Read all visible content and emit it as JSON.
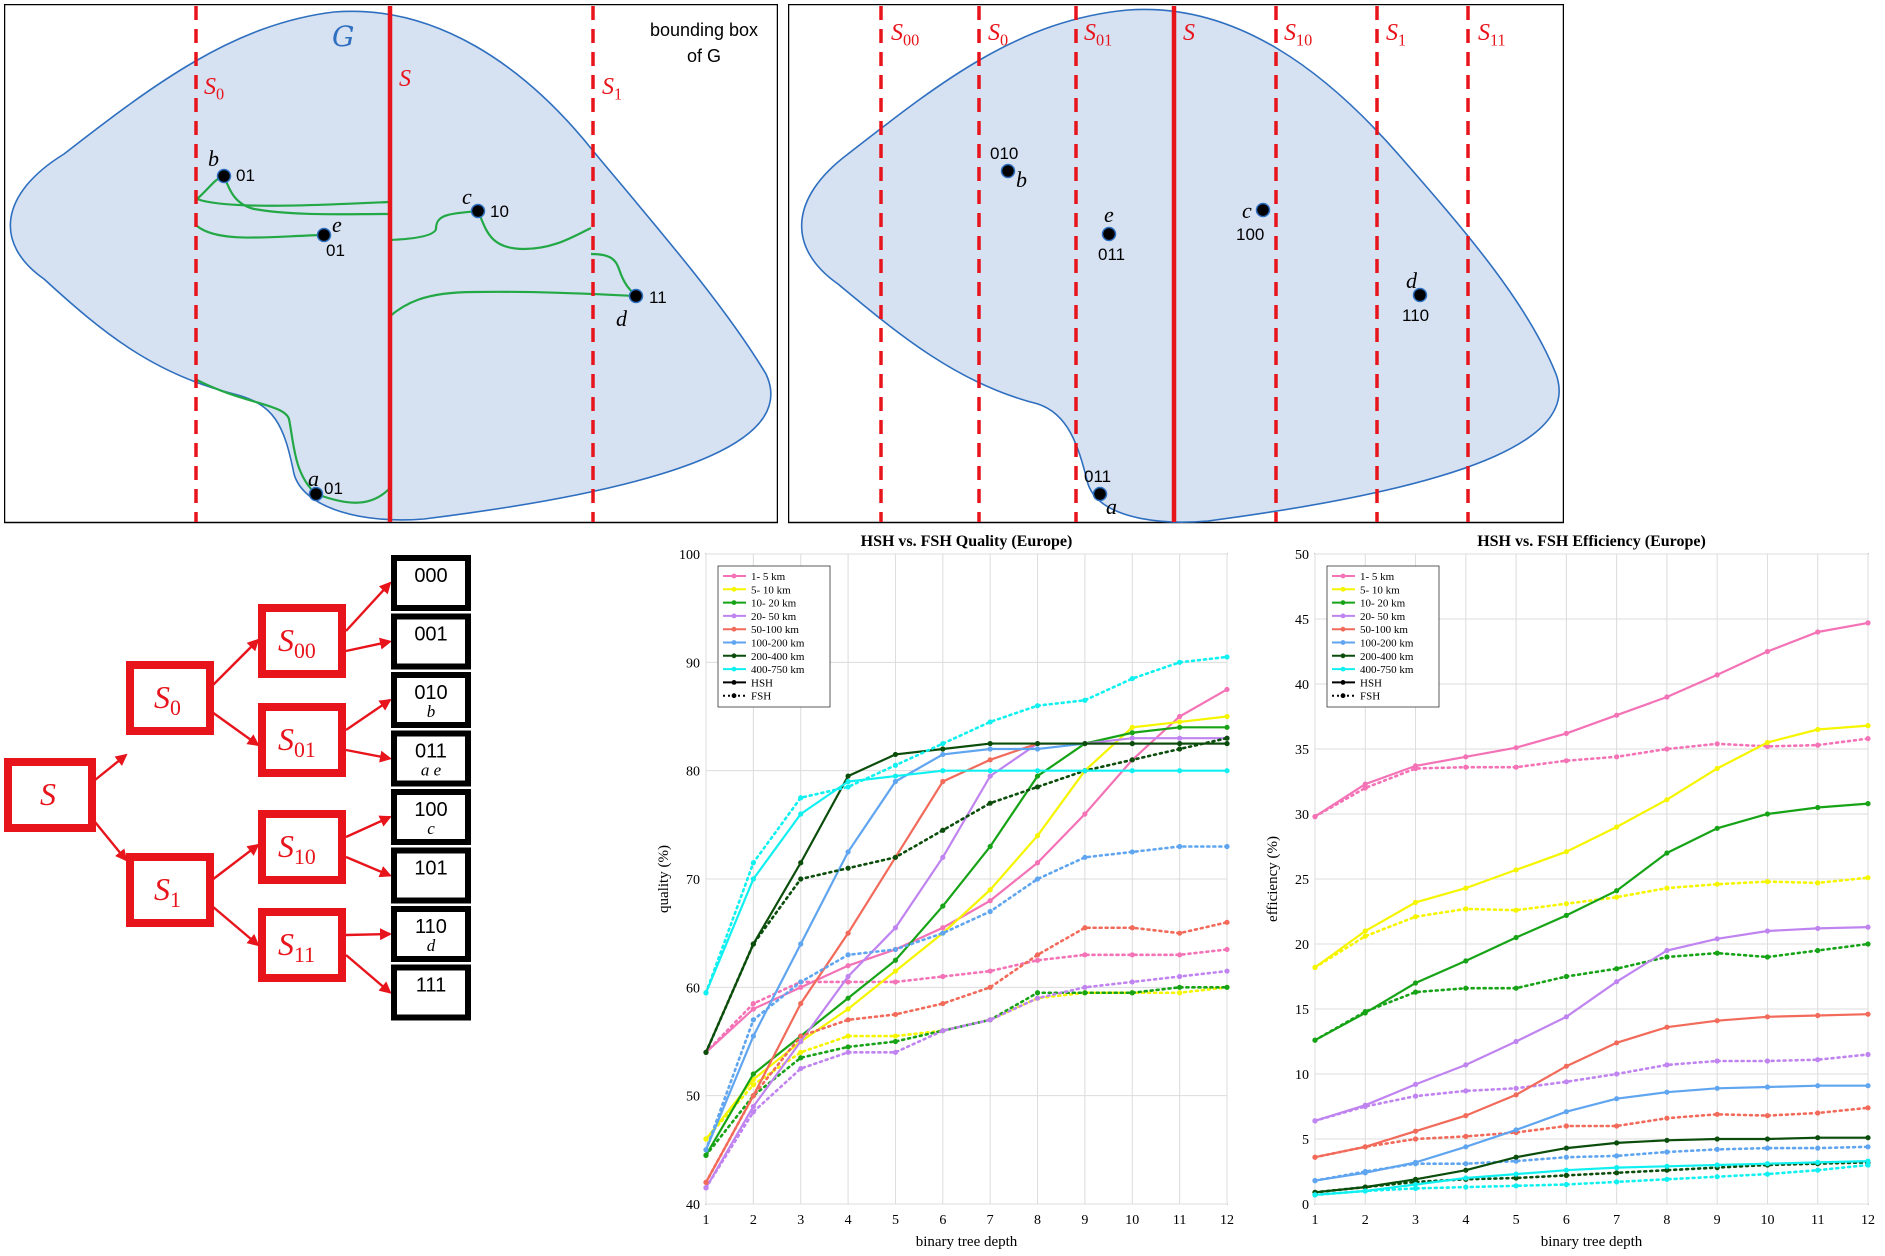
{
  "panel_a": {
    "region_label": "G",
    "bbox_label_line1": "bounding box",
    "bbox_label_line2": "of G",
    "splits": [
      {
        "name": "S",
        "sub": ""
      },
      {
        "name": "S",
        "sub": "0"
      },
      {
        "name": "S",
        "sub": "1"
      }
    ],
    "points": [
      {
        "name": "b",
        "code": "01"
      },
      {
        "name": "e",
        "code": "01"
      },
      {
        "name": "c",
        "code": "10"
      },
      {
        "name": "d",
        "code": "11"
      },
      {
        "name": "a",
        "code": "01"
      }
    ]
  },
  "panel_b": {
    "splits": [
      {
        "name": "S",
        "sub": "00"
      },
      {
        "name": "S",
        "sub": "0"
      },
      {
        "name": "S",
        "sub": "01"
      },
      {
        "name": "S",
        "sub": ""
      },
      {
        "name": "S",
        "sub": "10"
      },
      {
        "name": "S",
        "sub": "1"
      },
      {
        "name": "S",
        "sub": "11"
      }
    ],
    "points": [
      {
        "name": "b",
        "code": "010"
      },
      {
        "name": "e",
        "code": "011"
      },
      {
        "name": "c",
        "code": "100"
      },
      {
        "name": "d",
        "code": "110"
      },
      {
        "name": "a",
        "code": "011"
      }
    ]
  },
  "tree": {
    "nodes": [
      {
        "name": "S",
        "sub": ""
      },
      {
        "name": "S",
        "sub": "0"
      },
      {
        "name": "S",
        "sub": "1"
      },
      {
        "name": "S",
        "sub": "00"
      },
      {
        "name": "S",
        "sub": "01"
      },
      {
        "name": "S",
        "sub": "10"
      },
      {
        "name": "S",
        "sub": "11"
      }
    ],
    "leaves": [
      {
        "code": "000",
        "points": ""
      },
      {
        "code": "001",
        "points": ""
      },
      {
        "code": "010",
        "points": "b"
      },
      {
        "code": "011",
        "points": "a    e"
      },
      {
        "code": "100",
        "points": "c"
      },
      {
        "code": "101",
        "points": ""
      },
      {
        "code": "110",
        "points": "d"
      },
      {
        "code": "111",
        "points": ""
      }
    ]
  },
  "colors": {
    "split_red": "#e8141c",
    "region_fill": "#d6e1f2",
    "region_stroke": "#2e6fbf",
    "edge_green": "#22a845"
  },
  "chart_data": [
    {
      "type": "line",
      "title": "HSH vs. FSH Quality (Europe)",
      "xlabel": "binary tree depth",
      "ylabel": "quality (%)",
      "xlim": [
        1,
        12
      ],
      "ylim": [
        40,
        100
      ],
      "x": [
        1,
        2,
        3,
        4,
        5,
        6,
        7,
        8,
        9,
        10,
        11,
        12
      ],
      "y_ticks": [
        40,
        50,
        60,
        70,
        80,
        90,
        100
      ],
      "grid": true,
      "legend_position": "top-left",
      "legend": [
        {
          "name": "1-  5 km",
          "color": "#f472b6"
        },
        {
          "name": "5-  10 km",
          "color": "#f5f500"
        },
        {
          "name": "10-  20 km",
          "color": "#16a316"
        },
        {
          "name": "20-  50 km",
          "color": "#c084f0"
        },
        {
          "name": "50-100 km",
          "color": "#f26a5a"
        },
        {
          "name": "100-200 km",
          "color": "#60a5f0"
        },
        {
          "name": "200-400 km",
          "color": "#0b4d0b"
        },
        {
          "name": "400-750 km",
          "color": "#10f0f0"
        },
        {
          "name": "HSH",
          "color": "#000000",
          "style": "solid"
        },
        {
          "name": "FSH",
          "color": "#000000",
          "style": "dotted"
        }
      ],
      "series": [
        {
          "band": "1-  5 km",
          "method": "HSH",
          "values": [
            54,
            58,
            60,
            62,
            63.5,
            65.5,
            68,
            71.5,
            76,
            81,
            85,
            87.5
          ]
        },
        {
          "band": "1-  5 km",
          "method": "FSH",
          "values": [
            54,
            58.5,
            60.5,
            60.5,
            60.5,
            61,
            61.5,
            62.5,
            63,
            63,
            63,
            63.5
          ]
        },
        {
          "band": "5-  10 km",
          "method": "HSH",
          "values": [
            46,
            51.5,
            55,
            58,
            61.5,
            65,
            69,
            74,
            80,
            84,
            84.5,
            85
          ]
        },
        {
          "band": "5-  10 km",
          "method": "FSH",
          "values": [
            46,
            51,
            54,
            55.5,
            55.5,
            56,
            57,
            59,
            59.5,
            59.5,
            59.5,
            60
          ]
        },
        {
          "band": "10-  20 km",
          "method": "HSH",
          "values": [
            44.5,
            52,
            55.5,
            59,
            62.5,
            67.5,
            73,
            79.5,
            82.5,
            83.5,
            84,
            84
          ]
        },
        {
          "band": "10-  20 km",
          "method": "FSH",
          "values": [
            44.5,
            50,
            53.5,
            54.5,
            55,
            56,
            57,
            59.5,
            59.5,
            59.5,
            60,
            60
          ]
        },
        {
          "band": "20-  50 km",
          "method": "HSH",
          "values": [
            41.5,
            49,
            55,
            61,
            65.5,
            72,
            79.5,
            82.5,
            82.5,
            83,
            83,
            83
          ]
        },
        {
          "band": "20-  50 km",
          "method": "FSH",
          "values": [
            41.5,
            48.5,
            52.5,
            54,
            54,
            56,
            57,
            59,
            60,
            60.5,
            61,
            61.5
          ]
        },
        {
          "band": "50-100 km",
          "method": "HSH",
          "values": [
            42,
            50,
            58.5,
            65,
            72,
            79,
            81,
            82.5,
            82.5,
            82.5,
            82.5,
            82.5
          ]
        },
        {
          "band": "50-100 km",
          "method": "FSH",
          "values": [
            42,
            50,
            55.5,
            57,
            57.5,
            58.5,
            60,
            63,
            65.5,
            65.5,
            65,
            66
          ]
        },
        {
          "band": "100-200 km",
          "method": "HSH",
          "values": [
            45,
            55.5,
            64,
            72.5,
            79,
            81.5,
            82,
            82,
            82.5,
            82.5,
            82.5,
            82.5
          ]
        },
        {
          "band": "100-200 km",
          "method": "FSH",
          "values": [
            45,
            57,
            60.5,
            63,
            63.5,
            65,
            67,
            70,
            72,
            72.5,
            73,
            73
          ]
        },
        {
          "band": "200-400 km",
          "method": "HSH",
          "values": [
            54,
            64,
            71.5,
            79.5,
            81.5,
            82,
            82.5,
            82.5,
            82.5,
            82.5,
            82.5,
            82.5
          ]
        },
        {
          "band": "200-400 km",
          "method": "FSH",
          "values": [
            54,
            64,
            70,
            71,
            72,
            74.5,
            77,
            78.5,
            80,
            81,
            82,
            83
          ]
        },
        {
          "band": "400-750 km",
          "method": "HSH",
          "values": [
            59.5,
            70,
            76,
            79,
            79.5,
            80,
            80,
            80,
            80,
            80,
            80,
            80
          ]
        },
        {
          "band": "400-750 km",
          "method": "FSH",
          "values": [
            59.5,
            71.5,
            77.5,
            78.5,
            80.5,
            82.5,
            84.5,
            86,
            86.5,
            88.5,
            90,
            90.5
          ]
        }
      ]
    },
    {
      "type": "line",
      "title": "HSH vs. FSH  Efficiency (Europe)",
      "xlabel": "binary tree depth",
      "ylabel": "efficiency (%)",
      "xlim": [
        1,
        12
      ],
      "ylim": [
        0,
        50
      ],
      "x": [
        1,
        2,
        3,
        4,
        5,
        6,
        7,
        8,
        9,
        10,
        11,
        12
      ],
      "y_ticks": [
        0,
        5,
        10,
        15,
        20,
        25,
        30,
        35,
        40,
        45,
        50
      ],
      "grid": true,
      "legend_position": "top-left",
      "legend": [
        {
          "name": "1-  5 km",
          "color": "#f472b6"
        },
        {
          "name": "5-  10 km",
          "color": "#f5f500"
        },
        {
          "name": "10-  20 km",
          "color": "#16a316"
        },
        {
          "name": "20-  50 km",
          "color": "#c084f0"
        },
        {
          "name": "50-100 km",
          "color": "#f26a5a"
        },
        {
          "name": "100-200 km",
          "color": "#60a5f0"
        },
        {
          "name": "200-400 km",
          "color": "#0b4d0b"
        },
        {
          "name": "400-750 km",
          "color": "#10f0f0"
        },
        {
          "name": "HSH",
          "color": "#000000",
          "style": "solid"
        },
        {
          "name": "FSH",
          "color": "#000000",
          "style": "dotted"
        }
      ],
      "series": [
        {
          "band": "1-  5 km",
          "method": "HSH",
          "values": [
            29.8,
            32.3,
            33.7,
            34.4,
            35.1,
            36.2,
            37.6,
            39,
            40.7,
            42.5,
            44,
            44.7
          ]
        },
        {
          "band": "1-  5 km",
          "method": "FSH",
          "values": [
            29.8,
            32,
            33.5,
            33.6,
            33.6,
            34.1,
            34.4,
            35,
            35.4,
            35.2,
            35.3,
            35.8
          ]
        },
        {
          "band": "5-  10 km",
          "method": "HSH",
          "values": [
            18.2,
            21,
            23.2,
            24.3,
            25.7,
            27.1,
            29,
            31.1,
            33.5,
            35.5,
            36.5,
            36.8
          ]
        },
        {
          "band": "5-  10 km",
          "method": "FSH",
          "values": [
            18.2,
            20.6,
            22.1,
            22.7,
            22.6,
            23.1,
            23.6,
            24.3,
            24.6,
            24.8,
            24.7,
            25.1
          ]
        },
        {
          "band": "10-  20 km",
          "method": "HSH",
          "values": [
            12.6,
            14.7,
            17,
            18.7,
            20.5,
            22.2,
            24.1,
            27,
            28.9,
            30,
            30.5,
            30.8
          ]
        },
        {
          "band": "10-  20 km",
          "method": "FSH",
          "values": [
            12.6,
            14.8,
            16.3,
            16.6,
            16.6,
            17.5,
            18.1,
            19,
            19.3,
            19,
            19.5,
            20
          ]
        },
        {
          "band": "20-  50 km",
          "method": "HSH",
          "values": [
            6.4,
            7.6,
            9.2,
            10.7,
            12.5,
            14.4,
            17.1,
            19.5,
            20.4,
            21,
            21.2,
            21.3
          ]
        },
        {
          "band": "20-  50 km",
          "method": "FSH",
          "values": [
            6.4,
            7.5,
            8.3,
            8.7,
            8.9,
            9.4,
            10,
            10.7,
            11,
            11,
            11.1,
            11.5
          ]
        },
        {
          "band": "50-100 km",
          "method": "HSH",
          "values": [
            3.6,
            4.4,
            5.6,
            6.8,
            8.4,
            10.6,
            12.4,
            13.6,
            14.1,
            14.4,
            14.5,
            14.6
          ]
        },
        {
          "band": "50-100 km",
          "method": "FSH",
          "values": [
            3.6,
            4.4,
            5,
            5.2,
            5.5,
            6,
            6,
            6.6,
            6.9,
            6.8,
            7,
            7.4
          ]
        },
        {
          "band": "100-200 km",
          "method": "HSH",
          "values": [
            1.8,
            2.4,
            3.2,
            4.4,
            5.7,
            7.1,
            8.1,
            8.6,
            8.9,
            9,
            9.1,
            9.1
          ]
        },
        {
          "band": "100-200 km",
          "method": "FSH",
          "values": [
            1.8,
            2.5,
            3.1,
            3.1,
            3.3,
            3.6,
            3.7,
            4,
            4.2,
            4.3,
            4.3,
            4.4
          ]
        },
        {
          "band": "200-400 km",
          "method": "HSH",
          "values": [
            0.9,
            1.3,
            1.9,
            2.6,
            3.6,
            4.3,
            4.7,
            4.9,
            5,
            5,
            5.1,
            5.1
          ]
        },
        {
          "band": "200-400 km",
          "method": "FSH",
          "values": [
            0.9,
            1.3,
            1.7,
            1.9,
            2,
            2.2,
            2.4,
            2.6,
            2.8,
            3,
            3.1,
            3.2
          ]
        },
        {
          "band": "400-750 km",
          "method": "HSH",
          "values": [
            0.7,
            1,
            1.5,
            2,
            2.3,
            2.6,
            2.8,
            2.9,
            3,
            3.1,
            3.2,
            3.3
          ]
        },
        {
          "band": "400-750 km",
          "method": "FSH",
          "values": [
            0.7,
            1,
            1.2,
            1.3,
            1.4,
            1.5,
            1.7,
            1.9,
            2.1,
            2.3,
            2.6,
            3
          ]
        }
      ]
    }
  ]
}
